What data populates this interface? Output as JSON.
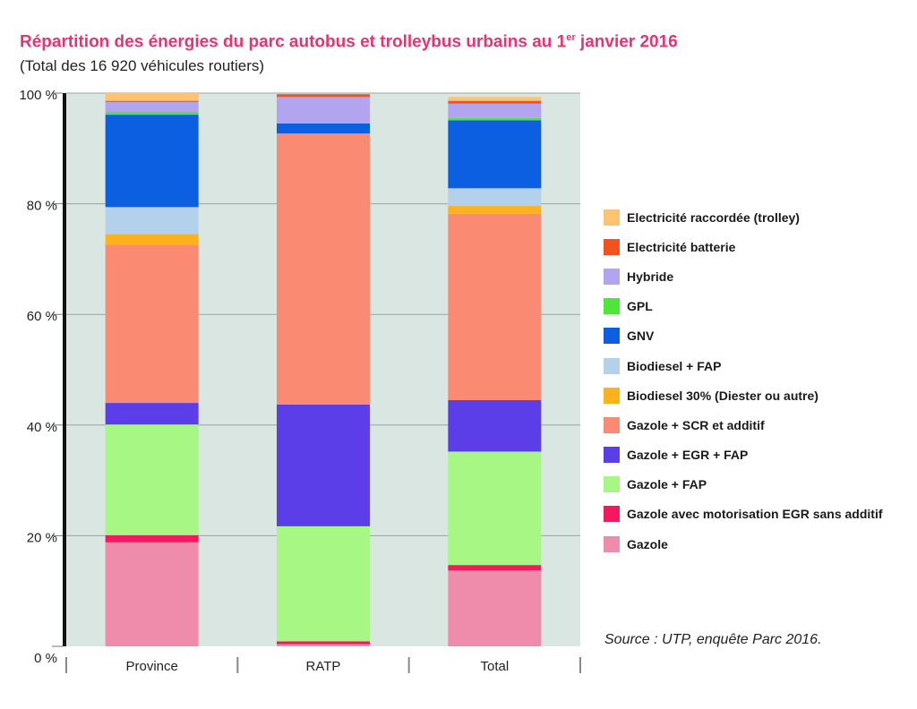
{
  "title_main": "Répartition des énergies du parc autobus et trolleybus urbains au 1",
  "title_sup": "er",
  "title_end": " janvier 2016",
  "subtitle": "(Total des 16 920 véhicules routiers)",
  "source": "Source : UTP, enquête Parc 2016.",
  "chart_data": {
    "type": "bar",
    "stacked": true,
    "categories": [
      "Province",
      "RATP",
      "Total"
    ],
    "yticks": [
      "0 %",
      "20 %",
      "40 %",
      "60 %",
      "80 %",
      "100 %"
    ],
    "ylim": [
      0,
      100
    ],
    "grid": true,
    "legend_position": "right",
    "series": [
      {
        "name": "Gazole",
        "color": "#f08cab",
        "values": [
          18.8,
          0.4,
          13.7
        ]
      },
      {
        "name": "Gazole avec motorisation EGR sans additif",
        "color": "#f4195f",
        "values": [
          1.3,
          0.5,
          1.0
        ]
      },
      {
        "name": "Gazole + FAP",
        "color": "#a6f784",
        "values": [
          20.0,
          20.8,
          20.5
        ]
      },
      {
        "name": "Gazole + EGR + FAP",
        "color": "#5b3ee8",
        "values": [
          3.9,
          22.0,
          9.3
        ]
      },
      {
        "name": "Gazole + SCR et additif",
        "color": "#fb8a72",
        "values": [
          28.6,
          49.0,
          33.7
        ]
      },
      {
        "name": "Biodiesel 30% (Diester ou autre)",
        "color": "#fbb21c",
        "values": [
          1.9,
          0,
          1.4
        ]
      },
      {
        "name": "Biodiesel + FAP",
        "color": "#b4d1ec",
        "values": [
          4.9,
          0,
          3.2
        ]
      },
      {
        "name": "GNV",
        "color": "#0c5fe0",
        "values": [
          16.7,
          1.8,
          12.3
        ]
      },
      {
        "name": "GPL",
        "color": "#4fe63a",
        "values": [
          0.5,
          0,
          0.4
        ]
      },
      {
        "name": "Hybride",
        "color": "#b3a4ef",
        "values": [
          1.8,
          4.8,
          2.6
        ]
      },
      {
        "name": "Electricité batterie",
        "color": "#f4511e",
        "values": [
          0.2,
          0.5,
          0.5
        ]
      },
      {
        "name": "Electricité raccordée (trolley)",
        "color": "#fcc373",
        "values": [
          1.4,
          0,
          0.7
        ]
      }
    ]
  }
}
